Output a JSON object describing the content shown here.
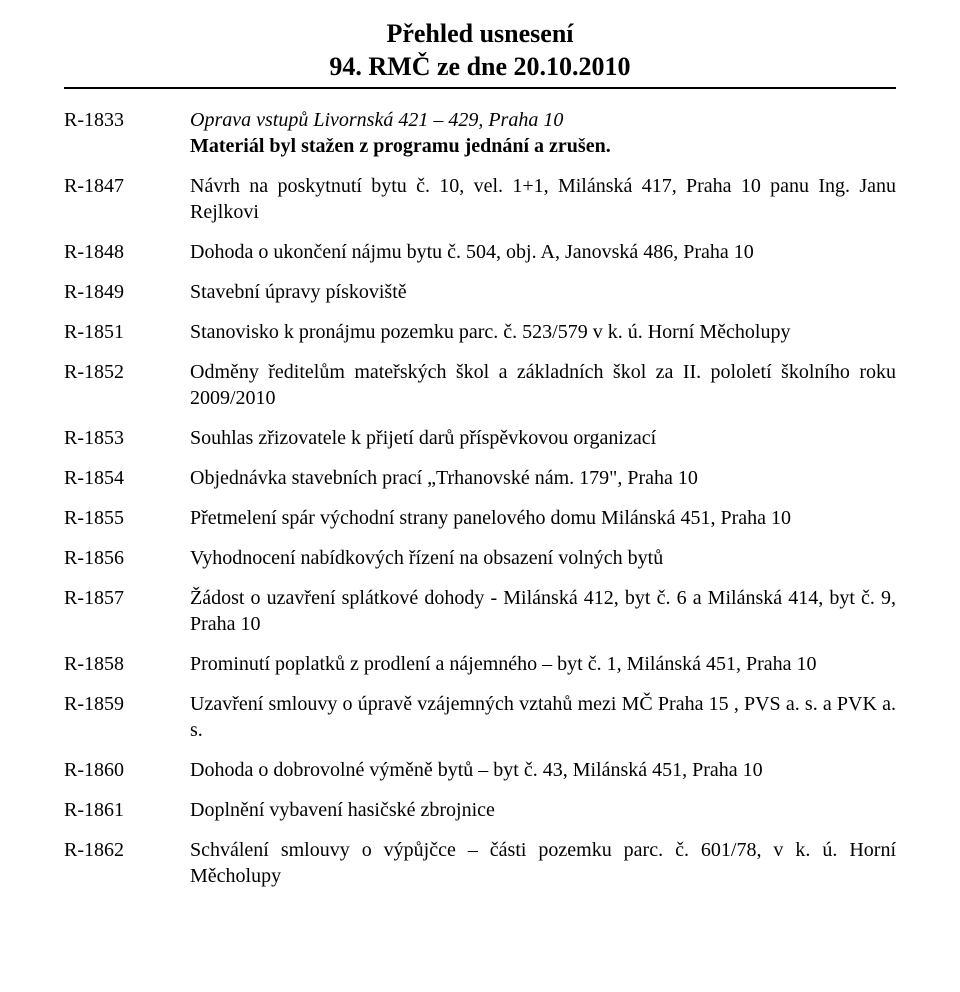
{
  "title": {
    "line1": "Přehled  usnesení",
    "line2": "94. RMČ ze dne 20.10.2010"
  },
  "items": [
    {
      "id": "R-1833",
      "lines": [
        {
          "text": "Oprava vstupů Livornská 421 – 429, Praha 10",
          "italic": true
        },
        {
          "text": "Materiál byl stažen z programu jednání a zrušen.",
          "italic": false,
          "bold": true
        }
      ]
    },
    {
      "id": "R-1847",
      "lines": [
        {
          "text": "Návrh  na  poskytnutí  bytu č. 10, vel.  1+1, Milánská  417, Praha 10 panu Ing. Janu Rejlkovi"
        }
      ]
    },
    {
      "id": "R-1848",
      "lines": [
        {
          "text": "Dohoda o ukončení nájmu bytu č. 504, obj. A, Janovská 486, Praha 10"
        }
      ]
    },
    {
      "id": "R-1849",
      "lines": [
        {
          "text": "Stavební úpravy pískoviště"
        }
      ]
    },
    {
      "id": "R-1851",
      "lines": [
        {
          "text": "Stanovisko k pronájmu pozemku parc. č. 523/579 v k. ú. Horní Měcholupy"
        }
      ]
    },
    {
      "id": "R-1852",
      "lines": [
        {
          "text": "Odměny ředitelům mateřských škol a základních škol za II. pololetí školního roku 2009/2010"
        }
      ]
    },
    {
      "id": "R-1853",
      "lines": [
        {
          "text": "Souhlas zřizovatele k přijetí darů příspěvkovou organizací"
        }
      ]
    },
    {
      "id": "R-1854",
      "lines": [
        {
          "text": "Objednávka stavebních prací „Trhanovské nám. 179\", Praha 10"
        }
      ]
    },
    {
      "id": "R-1855",
      "lines": [
        {
          "text": "Přetmelení spár východní strany panelového domu Milánská 451, Praha 10"
        }
      ]
    },
    {
      "id": "R-1856",
      "lines": [
        {
          "text": "Vyhodnocení nabídkových řízení na obsazení volných  bytů"
        }
      ]
    },
    {
      "id": "R-1857",
      "lines": [
        {
          "text": "Žádost  o  uzavření  splátkové  dohody  -  Milánská  412,  byt  č. 6 a  Milánská 414, byt č. 9, Praha 10"
        }
      ]
    },
    {
      "id": "R-1858",
      "lines": [
        {
          "text": "Prominutí  poplatků z prodlení a nájemného – byt č. 1, Milánská 451, Praha 10"
        }
      ]
    },
    {
      "id": "R-1859",
      "lines": [
        {
          "text": "Uzavření smlouvy  o úpravě  vzájemných vztahů mezi MČ  Praha 15 , PVS a. s. a PVK a. s."
        }
      ]
    },
    {
      "id": "R-1860",
      "lines": [
        {
          "text": "Dohoda   o dobrovolné výměně  bytů – byt č. 43, Milánská 451, Praha 10"
        }
      ]
    },
    {
      "id": "R-1861",
      "lines": [
        {
          "text": "Doplnění vybavení hasičské zbrojnice"
        }
      ]
    },
    {
      "id": "R-1862",
      "lines": [
        {
          "text": "Schválení smlouvy o výpůjčce – části  pozemku parc.  č. 601/78,  v k. ú. Horní Měcholupy"
        }
      ]
    }
  ]
}
